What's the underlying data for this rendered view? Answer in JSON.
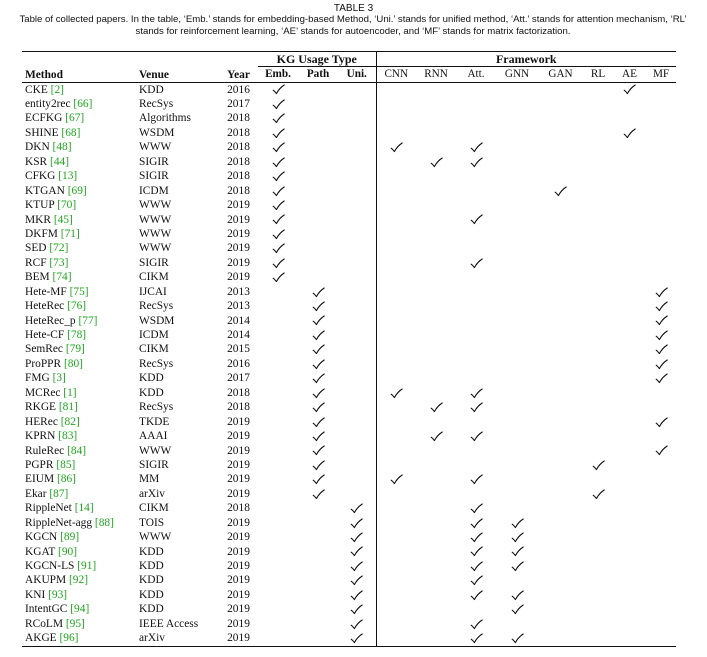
{
  "caption": {
    "title": "TABLE 3",
    "text": "Table of collected papers. In the table, ‘Emb.’ stands for embedding-based Method, ‘Uni.’ stands for unified method, ‘Att.’ stands for attention mechanism, ‘RL’ stands for reinforcement learning, ‘AE’ stands for autoencoder, and ‘MF’ stands for matrix factorization."
  },
  "headers": {
    "method": "Method",
    "venue": "Venue",
    "year": "Year",
    "kg_group": "KG Usage Type",
    "framework_group": "Framework",
    "kg_cols": [
      "Emb.",
      "Path",
      "Uni."
    ],
    "fw_cols": [
      "CNN",
      "RNN",
      "Att.",
      "GNN",
      "GAN",
      "RL",
      "AE",
      "MF"
    ]
  },
  "check_icon": "checkmark-icon",
  "rows": [
    {
      "method": "CKE",
      "ref": "[2]",
      "venue": "KDD",
      "year": "2016",
      "kg": [
        1,
        0,
        0
      ],
      "fw": [
        0,
        0,
        0,
        0,
        0,
        0,
        1,
        0
      ]
    },
    {
      "method": "entity2rec",
      "ref": "[66]",
      "venue": "RecSys",
      "year": "2017",
      "kg": [
        1,
        0,
        0
      ],
      "fw": [
        0,
        0,
        0,
        0,
        0,
        0,
        0,
        0
      ]
    },
    {
      "method": "ECFKG",
      "ref": "[67]",
      "venue": "Algorithms",
      "year": "2018",
      "kg": [
        1,
        0,
        0
      ],
      "fw": [
        0,
        0,
        0,
        0,
        0,
        0,
        0,
        0
      ]
    },
    {
      "method": "SHINE",
      "ref": "[68]",
      "venue": "WSDM",
      "year": "2018",
      "kg": [
        1,
        0,
        0
      ],
      "fw": [
        0,
        0,
        0,
        0,
        0,
        0,
        1,
        0
      ]
    },
    {
      "method": "DKN",
      "ref": "[48]",
      "venue": "WWW",
      "year": "2018",
      "kg": [
        1,
        0,
        0
      ],
      "fw": [
        1,
        0,
        1,
        0,
        0,
        0,
        0,
        0
      ]
    },
    {
      "method": "KSR",
      "ref": "[44]",
      "venue": "SIGIR",
      "year": "2018",
      "kg": [
        1,
        0,
        0
      ],
      "fw": [
        0,
        1,
        1,
        0,
        0,
        0,
        0,
        0
      ]
    },
    {
      "method": "CFKG",
      "ref": "[13]",
      "venue": "SIGIR",
      "year": "2018",
      "kg": [
        1,
        0,
        0
      ],
      "fw": [
        0,
        0,
        0,
        0,
        0,
        0,
        0,
        0
      ]
    },
    {
      "method": "KTGAN",
      "ref": "[69]",
      "venue": "ICDM",
      "year": "2018",
      "kg": [
        1,
        0,
        0
      ],
      "fw": [
        0,
        0,
        0,
        0,
        1,
        0,
        0,
        0
      ]
    },
    {
      "method": "KTUP",
      "ref": "[70]",
      "venue": "WWW",
      "year": "2019",
      "kg": [
        1,
        0,
        0
      ],
      "fw": [
        0,
        0,
        0,
        0,
        0,
        0,
        0,
        0
      ]
    },
    {
      "method": "MKR",
      "ref": "[45]",
      "venue": "WWW",
      "year": "2019",
      "kg": [
        1,
        0,
        0
      ],
      "fw": [
        0,
        0,
        1,
        0,
        0,
        0,
        0,
        0
      ]
    },
    {
      "method": "DKFM",
      "ref": "[71]",
      "venue": "WWW",
      "year": "2019",
      "kg": [
        1,
        0,
        0
      ],
      "fw": [
        0,
        0,
        0,
        0,
        0,
        0,
        0,
        0
      ]
    },
    {
      "method": "SED",
      "ref": "[72]",
      "venue": "WWW",
      "year": "2019",
      "kg": [
        1,
        0,
        0
      ],
      "fw": [
        0,
        0,
        0,
        0,
        0,
        0,
        0,
        0
      ]
    },
    {
      "method": "RCF",
      "ref": "[73]",
      "venue": "SIGIR",
      "year": "2019",
      "kg": [
        1,
        0,
        0
      ],
      "fw": [
        0,
        0,
        1,
        0,
        0,
        0,
        0,
        0
      ]
    },
    {
      "method": "BEM",
      "ref": "[74]",
      "venue": "CIKM",
      "year": "2019",
      "kg": [
        1,
        0,
        0
      ],
      "fw": [
        0,
        0,
        0,
        0,
        0,
        0,
        0,
        0
      ]
    },
    {
      "method": "Hete-MF",
      "ref": "[75]",
      "venue": "IJCAI",
      "year": "2013",
      "kg": [
        0,
        1,
        0
      ],
      "fw": [
        0,
        0,
        0,
        0,
        0,
        0,
        0,
        1
      ]
    },
    {
      "method": "HeteRec",
      "ref": "[76]",
      "venue": "RecSys",
      "year": "2013",
      "kg": [
        0,
        1,
        0
      ],
      "fw": [
        0,
        0,
        0,
        0,
        0,
        0,
        0,
        1
      ]
    },
    {
      "method": "HeteRec_p",
      "ref": "[77]",
      "venue": "WSDM",
      "year": "2014",
      "kg": [
        0,
        1,
        0
      ],
      "fw": [
        0,
        0,
        0,
        0,
        0,
        0,
        0,
        1
      ]
    },
    {
      "method": "Hete-CF",
      "ref": "[78]",
      "venue": "ICDM",
      "year": "2014",
      "kg": [
        0,
        1,
        0
      ],
      "fw": [
        0,
        0,
        0,
        0,
        0,
        0,
        0,
        1
      ]
    },
    {
      "method": "SemRec",
      "ref": "[79]",
      "venue": "CIKM",
      "year": "2015",
      "kg": [
        0,
        1,
        0
      ],
      "fw": [
        0,
        0,
        0,
        0,
        0,
        0,
        0,
        1
      ]
    },
    {
      "method": "ProPPR",
      "ref": "[80]",
      "venue": "RecSys",
      "year": "2016",
      "kg": [
        0,
        1,
        0
      ],
      "fw": [
        0,
        0,
        0,
        0,
        0,
        0,
        0,
        1
      ]
    },
    {
      "method": "FMG",
      "ref": "[3]",
      "venue": "KDD",
      "year": "2017",
      "kg": [
        0,
        1,
        0
      ],
      "fw": [
        0,
        0,
        0,
        0,
        0,
        0,
        0,
        1
      ]
    },
    {
      "method": "MCRec",
      "ref": "[1]",
      "venue": "KDD",
      "year": "2018",
      "kg": [
        0,
        1,
        0
      ],
      "fw": [
        1,
        0,
        1,
        0,
        0,
        0,
        0,
        0
      ]
    },
    {
      "method": "RKGE",
      "ref": "[81]",
      "venue": "RecSys",
      "year": "2018",
      "kg": [
        0,
        1,
        0
      ],
      "fw": [
        0,
        1,
        1,
        0,
        0,
        0,
        0,
        0
      ]
    },
    {
      "method": "HERec",
      "ref": "[82]",
      "venue": "TKDE",
      "year": "2019",
      "kg": [
        0,
        1,
        0
      ],
      "fw": [
        0,
        0,
        0,
        0,
        0,
        0,
        0,
        1
      ]
    },
    {
      "method": "KPRN",
      "ref": "[83]",
      "venue": "AAAI",
      "year": "2019",
      "kg": [
        0,
        1,
        0
      ],
      "fw": [
        0,
        1,
        1,
        0,
        0,
        0,
        0,
        0
      ]
    },
    {
      "method": "RuleRec",
      "ref": "[84]",
      "venue": "WWW",
      "year": "2019",
      "kg": [
        0,
        1,
        0
      ],
      "fw": [
        0,
        0,
        0,
        0,
        0,
        0,
        0,
        1
      ]
    },
    {
      "method": "PGPR",
      "ref": "[85]",
      "venue": "SIGIR",
      "year": "2019",
      "kg": [
        0,
        1,
        0
      ],
      "fw": [
        0,
        0,
        0,
        0,
        0,
        1,
        0,
        0
      ]
    },
    {
      "method": "EIUM",
      "ref": "[86]",
      "venue": "MM",
      "year": "2019",
      "kg": [
        0,
        1,
        0
      ],
      "fw": [
        1,
        0,
        1,
        0,
        0,
        0,
        0,
        0
      ]
    },
    {
      "method": "Ekar",
      "ref": "[87]",
      "venue": "arXiv",
      "year": "2019",
      "kg": [
        0,
        1,
        0
      ],
      "fw": [
        0,
        0,
        0,
        0,
        0,
        1,
        0,
        0
      ]
    },
    {
      "method": "RippleNet",
      "ref": "[14]",
      "venue": "CIKM",
      "year": "2018",
      "kg": [
        0,
        0,
        1
      ],
      "fw": [
        0,
        0,
        1,
        0,
        0,
        0,
        0,
        0
      ]
    },
    {
      "method": "RippleNet-agg",
      "ref": "[88]",
      "venue": "TOIS",
      "year": "2019",
      "kg": [
        0,
        0,
        1
      ],
      "fw": [
        0,
        0,
        1,
        1,
        0,
        0,
        0,
        0
      ]
    },
    {
      "method": "KGCN",
      "ref": "[89]",
      "venue": "WWW",
      "year": "2019",
      "kg": [
        0,
        0,
        1
      ],
      "fw": [
        0,
        0,
        1,
        1,
        0,
        0,
        0,
        0
      ]
    },
    {
      "method": "KGAT",
      "ref": "[90]",
      "venue": "KDD",
      "year": "2019",
      "kg": [
        0,
        0,
        1
      ],
      "fw": [
        0,
        0,
        1,
        1,
        0,
        0,
        0,
        0
      ]
    },
    {
      "method": "KGCN-LS",
      "ref": "[91]",
      "venue": "KDD",
      "year": "2019",
      "kg": [
        0,
        0,
        1
      ],
      "fw": [
        0,
        0,
        1,
        1,
        0,
        0,
        0,
        0
      ]
    },
    {
      "method": "AKUPM",
      "ref": "[92]",
      "venue": "KDD",
      "year": "2019",
      "kg": [
        0,
        0,
        1
      ],
      "fw": [
        0,
        0,
        1,
        0,
        0,
        0,
        0,
        0
      ]
    },
    {
      "method": "KNI",
      "ref": "[93]",
      "venue": "KDD",
      "year": "2019",
      "kg": [
        0,
        0,
        1
      ],
      "fw": [
        0,
        0,
        1,
        1,
        0,
        0,
        0,
        0
      ]
    },
    {
      "method": "IntentGC",
      "ref": "[94]",
      "venue": "KDD",
      "year": "2019",
      "kg": [
        0,
        0,
        1
      ],
      "fw": [
        0,
        0,
        0,
        1,
        0,
        0,
        0,
        0
      ]
    },
    {
      "method": "RCoLM",
      "ref": "[95]",
      "venue": "IEEE Access",
      "year": "2019",
      "kg": [
        0,
        0,
        1
      ],
      "fw": [
        0,
        0,
        1,
        0,
        0,
        0,
        0,
        0
      ]
    },
    {
      "method": "AKGE",
      "ref": "[96]",
      "venue": "arXiv",
      "year": "2019",
      "kg": [
        0,
        0,
        1
      ],
      "fw": [
        0,
        0,
        1,
        1,
        0,
        0,
        0,
        0
      ]
    }
  ]
}
